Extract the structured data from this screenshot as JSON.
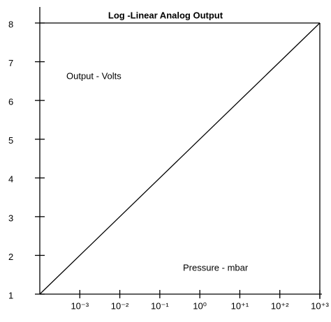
{
  "chart_data": {
    "type": "line",
    "title": "Log -Linear Analog Output",
    "annotations": [
      "Output  - Volts",
      "Pressure  - mbar"
    ],
    "xscale": "log",
    "xlim": [
      0.0001,
      1000
    ],
    "ylim": [
      1,
      8
    ],
    "xticks": [
      {
        "value": 0.001,
        "label": "10⁻³"
      },
      {
        "value": 0.01,
        "label": "10⁻²"
      },
      {
        "value": 0.1,
        "label": "10⁻¹"
      },
      {
        "value": 1,
        "label": "10⁰"
      },
      {
        "value": 10,
        "label": "10⁺¹"
      },
      {
        "value": 100,
        "label": "10⁺²"
      },
      {
        "value": 1000,
        "label": "10⁺³"
      }
    ],
    "yticks": [
      1,
      2,
      3,
      4,
      5,
      6,
      7,
      8
    ],
    "series": [
      {
        "color": "#000000",
        "x": [
          0.0001,
          1000
        ],
        "values": [
          1,
          8
        ]
      }
    ]
  }
}
